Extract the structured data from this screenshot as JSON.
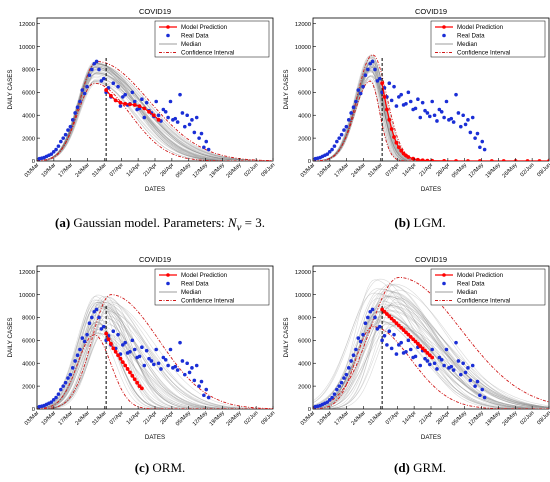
{
  "chart_data": [
    {
      "type": "line",
      "panel": "a",
      "title": "COVID19",
      "xlabel": "DATES",
      "ylabel": "DAILY CASES",
      "ylim": [
        0,
        12500
      ],
      "yticks": [
        0,
        2000,
        4000,
        6000,
        8000,
        10000,
        12000
      ],
      "xticks": [
        "03/Mar",
        "10/Mar",
        "17/Mar",
        "24/Mar",
        "31/Mar",
        "07/Apr",
        "14/Apr",
        "21/Apr",
        "28/Apr",
        "05/May",
        "12/May",
        "19/May",
        "26/May",
        "02/Jun",
        "09/Jun"
      ],
      "xlim_days": [
        0,
        99
      ],
      "cutoff_day": 29,
      "legend": [
        "Model Prediction",
        "Real Data",
        "Median",
        "Confidence Interval"
      ],
      "legend_position": "top-right",
      "series": [
        {
          "name": "Model Prediction",
          "x": [
            29,
            31,
            33,
            35,
            37,
            39,
            41,
            43,
            45,
            47,
            49,
            51
          ],
          "y": [
            6200,
            5700,
            5300,
            5100,
            5000,
            4950,
            4900,
            4800,
            4600,
            4300,
            4000,
            3600
          ]
        },
        {
          "name": "Real Data",
          "x": [
            1,
            2,
            3,
            4,
            5,
            6,
            7,
            8,
            9,
            10,
            11,
            12,
            13,
            14,
            15,
            16,
            17,
            18,
            19,
            20,
            21,
            22,
            23,
            24,
            25,
            26,
            27,
            28,
            29,
            30,
            31,
            32,
            33,
            34,
            35,
            36,
            37,
            38,
            39,
            40,
            41,
            42,
            43,
            44,
            45,
            46,
            47,
            48,
            49,
            50,
            51,
            52,
            53,
            54,
            55,
            56,
            57,
            58,
            59,
            60,
            61,
            62,
            63,
            64,
            65,
            66,
            67,
            68,
            69,
            70,
            71,
            72
          ],
          "y": [
            200,
            250,
            300,
            400,
            500,
            600,
            800,
            1000,
            1300,
            1700,
            2000,
            2300,
            2700,
            3000,
            3600,
            4200,
            4700,
            5200,
            6200,
            5900,
            6500,
            7500,
            8000,
            8500,
            8700,
            8000,
            7000,
            7200,
            6000,
            6400,
            5600,
            6800,
            5300,
            6500,
            4800,
            5600,
            5800,
            4900,
            5000,
            6000,
            5200,
            4500,
            4600,
            5400,
            3800,
            5100,
            4400,
            4200,
            3900,
            5200,
            4000,
            3500,
            4500,
            4300,
            3800,
            5200,
            3600,
            3700,
            3400,
            5800,
            4200,
            3000,
            4000,
            3200,
            3600,
            2500,
            3800,
            2000,
            2400,
            1200,
            1700,
            1000
          ]
        },
        {
          "name": "Median",
          "peak_day": 25,
          "peak": 7700,
          "left_sigma": 7,
          "right_sigma": 18
        },
        {
          "name": "Confidence Interval",
          "upper": {
            "peak_day": 25,
            "peak": 8700,
            "left_sigma": 7,
            "right_sigma": 22
          },
          "lower": {
            "peak_day": 24,
            "peak": 6800,
            "left_sigma": 7,
            "right_sigma": 15
          }
        }
      ]
    },
    {
      "type": "line",
      "panel": "b",
      "title": "COVID19",
      "xlabel": "DATES",
      "ylabel": "DAILY CASES",
      "ylim": [
        0,
        12500
      ],
      "yticks": [
        0,
        2000,
        4000,
        6000,
        8000,
        10000,
        12000
      ],
      "xticks": [
        "03/Mar",
        "10/Mar",
        "17/Mar",
        "24/Mar",
        "31/Mar",
        "07/Apr",
        "14/Apr",
        "21/Apr",
        "28/Apr",
        "05/May",
        "12/May",
        "19/May",
        "26/May",
        "02/Jun",
        "09/Jun"
      ],
      "xlim_days": [
        0,
        99
      ],
      "cutoff_day": 29,
      "legend": [
        "Model Prediction",
        "Real Data",
        "Median",
        "Confidence Interval"
      ],
      "legend_position": "top-right",
      "series": [
        {
          "name": "Model Prediction",
          "x": [
            29,
            30,
            31,
            32,
            33,
            34,
            35,
            36,
            37,
            38,
            39,
            40,
            42,
            44,
            46,
            48,
            50,
            55,
            60,
            65,
            70,
            75,
            80,
            85,
            90,
            95,
            99
          ],
          "y": [
            6800,
            5600,
            4500,
            3600,
            2800,
            2100,
            1600,
            1200,
            900,
            650,
            480,
            350,
            200,
            110,
            60,
            30,
            15,
            5,
            0,
            0,
            0,
            0,
            0,
            0,
            0,
            0,
            0
          ]
        },
        {
          "name": "Real Data",
          "x": [
            1,
            2,
            3,
            4,
            5,
            6,
            7,
            8,
            9,
            10,
            11,
            12,
            13,
            14,
            15,
            16,
            17,
            18,
            19,
            20,
            21,
            22,
            23,
            24,
            25,
            26,
            27,
            28,
            29,
            30,
            31,
            32,
            33,
            34,
            35,
            36,
            37,
            38,
            39,
            40,
            41,
            42,
            43,
            44,
            45,
            46,
            47,
            48,
            49,
            50,
            51,
            52,
            53,
            54,
            55,
            56,
            57,
            58,
            59,
            60,
            61,
            62,
            63,
            64,
            65,
            66,
            67,
            68,
            69,
            70,
            71,
            72
          ],
          "y": [
            200,
            250,
            300,
            400,
            500,
            600,
            800,
            1000,
            1300,
            1700,
            2000,
            2300,
            2700,
            3000,
            3600,
            4200,
            4700,
            5200,
            6200,
            5900,
            6500,
            7500,
            8000,
            8500,
            8700,
            8000,
            7000,
            7200,
            6000,
            6400,
            5600,
            6800,
            5300,
            6500,
            4800,
            5600,
            5800,
            4900,
            5000,
            6000,
            5200,
            4500,
            4600,
            5400,
            3800,
            5100,
            4400,
            4200,
            3900,
            5200,
            4000,
            3500,
            4500,
            4300,
            3800,
            5200,
            3600,
            3700,
            3400,
            5800,
            4200,
            3000,
            4000,
            3200,
            3600,
            2500,
            3800,
            2000,
            2400,
            1200,
            1700,
            1000
          ]
        },
        {
          "name": "Median",
          "peak_day": 25,
          "peak": 8200,
          "left_sigma": 6.5,
          "right_sigma": 5
        },
        {
          "name": "Confidence Interval",
          "upper": {
            "peak_day": 25,
            "peak": 9300,
            "left_sigma": 6.5,
            "right_sigma": 6
          },
          "lower": {
            "peak_day": 24,
            "peak": 7000,
            "left_sigma": 6.5,
            "right_sigma": 4
          }
        }
      ]
    },
    {
      "type": "line",
      "panel": "c",
      "title": "COVID19",
      "xlabel": "DATES",
      "ylabel": "DAILY CASES",
      "ylim": [
        0,
        12500
      ],
      "yticks": [
        0,
        2000,
        4000,
        6000,
        8000,
        10000,
        12000
      ],
      "xticks": [
        "03/Mar",
        "10/Mar",
        "17/Mar",
        "24/Mar",
        "31/Mar",
        "07/Apr",
        "14/Apr",
        "21/Apr",
        "28/Apr",
        "05/May",
        "12/May",
        "19/May",
        "26/May",
        "02/Jun",
        "09/Jun"
      ],
      "xlim_days": [
        0,
        99
      ],
      "cutoff_day": 29,
      "legend": [
        "Model Prediction",
        "Real Data",
        "Median",
        "Confidence Interval"
      ],
      "legend_position": "top-right",
      "series": [
        {
          "name": "Model Prediction",
          "x": [
            29,
            30,
            31,
            32,
            33,
            34,
            35,
            36,
            37,
            38,
            39,
            40,
            41,
            42,
            43,
            44
          ],
          "y": [
            6600,
            6100,
            5700,
            5300,
            5000,
            4700,
            4400,
            4100,
            3800,
            3500,
            3200,
            2900,
            2600,
            2300,
            2000,
            1800
          ]
        },
        {
          "name": "Real Data",
          "x": [
            1,
            2,
            3,
            4,
            5,
            6,
            7,
            8,
            9,
            10,
            11,
            12,
            13,
            14,
            15,
            16,
            17,
            18,
            19,
            20,
            21,
            22,
            23,
            24,
            25,
            26,
            27,
            28,
            29,
            30,
            31,
            32,
            33,
            34,
            35,
            36,
            37,
            38,
            39,
            40,
            41,
            42,
            43,
            44,
            45,
            46,
            47,
            48,
            49,
            50,
            51,
            52,
            53,
            54,
            55,
            56,
            57,
            58,
            59,
            60,
            61,
            62,
            63,
            64,
            65,
            66,
            67,
            68,
            69,
            70,
            71,
            72
          ],
          "y": [
            200,
            250,
            300,
            400,
            500,
            600,
            800,
            1000,
            1300,
            1700,
            2000,
            2300,
            2700,
            3000,
            3600,
            4200,
            4700,
            5200,
            6200,
            5900,
            6500,
            7500,
            8000,
            8500,
            8700,
            8000,
            7000,
            7200,
            6000,
            6400,
            5600,
            6800,
            5300,
            6500,
            4800,
            5600,
            5800,
            4900,
            5000,
            6000,
            5200,
            4500,
            4600,
            5400,
            3800,
            5100,
            4400,
            4200,
            3900,
            5200,
            4000,
            3500,
            4500,
            4300,
            3800,
            5200,
            3600,
            3700,
            3400,
            5800,
            4200,
            3000,
            4000,
            3200,
            3600,
            2500,
            3800,
            2000,
            2400,
            1200,
            1700,
            1000
          ]
        },
        {
          "name": "Median",
          "peak_day": 25,
          "peak": 7600,
          "left_sigma": 7,
          "right_sigma": 9
        },
        {
          "name": "Confidence Interval",
          "upper": {
            "peak_day": 31,
            "peak": 10000,
            "left_sigma": 8,
            "right_sigma": 20
          },
          "lower": {
            "peak_day": 24,
            "peak": 6500,
            "left_sigma": 7,
            "right_sigma": 7
          }
        }
      ]
    },
    {
      "type": "line",
      "panel": "d",
      "title": "COVID19",
      "xlabel": "DATES",
      "ylabel": "DAILY CASES",
      "ylim": [
        0,
        12500
      ],
      "yticks": [
        0,
        2000,
        4000,
        6000,
        8000,
        10000,
        12000
      ],
      "xticks": [
        "03/Mar",
        "10/Mar",
        "17/Mar",
        "24/Mar",
        "31/Mar",
        "07/Apr",
        "14/Apr",
        "21/Apr",
        "28/Apr",
        "05/May",
        "12/May",
        "19/May",
        "26/May",
        "02/Jun",
        "09/Jun"
      ],
      "xlim_days": [
        0,
        99
      ],
      "cutoff_day": 29,
      "legend": [
        "Model Prediction",
        "Real Data",
        "Median",
        "Confidence Interval"
      ],
      "legend_position": "top-right",
      "series": [
        {
          "name": "Model Prediction",
          "x": [
            29,
            30,
            31,
            32,
            33,
            34,
            35,
            36,
            37,
            38,
            39,
            40,
            41,
            42,
            43,
            44,
            45,
            46,
            47,
            48,
            49,
            50
          ],
          "y": [
            8700,
            8500,
            8300,
            8100,
            7900,
            7700,
            7500,
            7300,
            7100,
            6900,
            6700,
            6500,
            6300,
            6100,
            5900,
            5700,
            5500,
            5300,
            5100,
            4900,
            4700,
            4500
          ]
        },
        {
          "name": "Real Data",
          "x": [
            1,
            2,
            3,
            4,
            5,
            6,
            7,
            8,
            9,
            10,
            11,
            12,
            13,
            14,
            15,
            16,
            17,
            18,
            19,
            20,
            21,
            22,
            23,
            24,
            25,
            26,
            27,
            28,
            29,
            30,
            31,
            32,
            33,
            34,
            35,
            36,
            37,
            38,
            39,
            40,
            41,
            42,
            43,
            44,
            45,
            46,
            47,
            48,
            49,
            50,
            51,
            52,
            53,
            54,
            55,
            56,
            57,
            58,
            59,
            60,
            61,
            62,
            63,
            64,
            65,
            66,
            67,
            68,
            69,
            70,
            71,
            72
          ],
          "y": [
            200,
            250,
            300,
            400,
            500,
            600,
            800,
            1000,
            1300,
            1700,
            2000,
            2300,
            2700,
            3000,
            3600,
            4200,
            4700,
            5200,
            6200,
            5900,
            6500,
            7500,
            8000,
            8500,
            8700,
            8000,
            7000,
            7200,
            6000,
            6400,
            5600,
            6800,
            5300,
            6500,
            4800,
            5600,
            5800,
            4900,
            5000,
            6000,
            5200,
            4500,
            4600,
            5400,
            3800,
            5100,
            4400,
            4200,
            3900,
            5200,
            4000,
            3500,
            4500,
            4300,
            3800,
            5200,
            3600,
            3700,
            3400,
            5800,
            4200,
            3000,
            4000,
            3200,
            3600,
            2500,
            3800,
            2000,
            2400,
            1200,
            1700,
            1000
          ]
        },
        {
          "name": "Median",
          "peak_day": 27,
          "peak": 8500,
          "left_sigma": 8,
          "right_sigma": 22
        },
        {
          "name": "Confidence Interval",
          "upper": {
            "peak_day": 36,
            "peak": 11500,
            "left_sigma": 12,
            "right_sigma": 26
          },
          "lower": {
            "peak_day": 25,
            "peak": 7200,
            "left_sigma": 7,
            "right_sigma": 16
          }
        }
      ]
    }
  ],
  "captions": {
    "a": {
      "label": "(a)",
      "text": " Gaussian model. Parameters: ",
      "math_var": "N",
      "math_sub": "v",
      "math_rest": " = 3."
    },
    "b": {
      "label": "(b)",
      "text": " LGM."
    },
    "c": {
      "label": "(c)",
      "text": " ORM."
    },
    "d": {
      "label": "(d)",
      "text": " GRM."
    }
  },
  "colors": {
    "prediction": "#ff0000",
    "real": "#1a2ed6",
    "median": "#b0b0b0",
    "ci": "#d01818",
    "ensemble": "#7a7a7a"
  }
}
